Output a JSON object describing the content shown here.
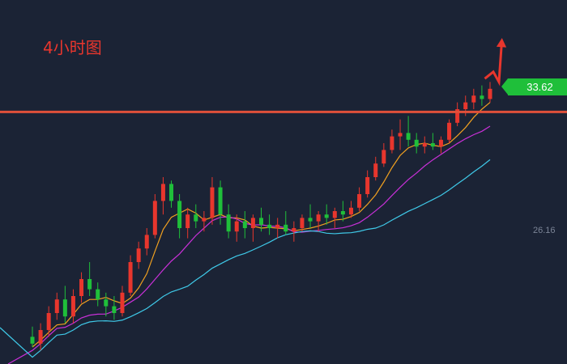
{
  "chart_data": {
    "type": "candlestick",
    "title": "4小时图",
    "timeframe": "4H",
    "price_tag": "33.62",
    "axis_label": "26.16",
    "colors": {
      "background": "#1b2335",
      "up": "#e8362d",
      "down": "#1fbf3a",
      "ma_short": "#f0a020",
      "ma_mid": "#c930d8",
      "ma_long": "#3fc9e8",
      "resistance": "#e0503a",
      "arrow": "#e8362d"
    },
    "resistance_level": 33.62,
    "arrow_path": [
      [
        0.855,
        34.6
      ],
      [
        0.87,
        34.8
      ],
      [
        0.88,
        34.5
      ],
      [
        0.885,
        35.7
      ]
    ],
    "candles": [
      [
        27,
        27.3,
        26.7,
        26.8
      ],
      [
        26.8,
        27.4,
        26.6,
        27.2
      ],
      [
        27.2,
        27.9,
        27.0,
        27.7
      ],
      [
        27.7,
        28.3,
        27.5,
        28.1
      ],
      [
        28.1,
        28.5,
        27.4,
        27.6
      ],
      [
        27.6,
        28.4,
        27.4,
        28.2
      ],
      [
        28.2,
        28.9,
        28.0,
        28.7
      ],
      [
        28.7,
        29.2,
        28.2,
        28.4
      ],
      [
        28.4,
        28.6,
        27.9,
        28.1
      ],
      [
        28.1,
        28.3,
        27.6,
        27.9
      ],
      [
        27.9,
        28.2,
        27.5,
        27.7
      ],
      [
        27.7,
        28.5,
        27.6,
        28.3
      ],
      [
        28.3,
        29.4,
        28.2,
        29.2
      ],
      [
        29.2,
        29.8,
        29.0,
        29.6
      ],
      [
        29.6,
        30.2,
        29.4,
        30.0
      ],
      [
        30.0,
        31.2,
        29.9,
        31.0
      ],
      [
        31.0,
        31.7,
        30.6,
        31.5
      ],
      [
        31.5,
        31.6,
        30.8,
        31.0
      ],
      [
        31.0,
        31.2,
        29.9,
        30.2
      ],
      [
        30.2,
        30.8,
        29.9,
        30.6
      ],
      [
        30.6,
        30.9,
        30.2,
        30.4
      ],
      [
        30.4,
        30.7,
        30.1,
        30.5
      ],
      [
        30.5,
        31.7,
        30.3,
        31.4
      ],
      [
        31.4,
        31.6,
        30.3,
        30.6
      ],
      [
        30.6,
        30.9,
        29.9,
        30.1
      ],
      [
        30.1,
        30.6,
        29.8,
        30.4
      ],
      [
        30.4,
        30.7,
        29.9,
        30.2
      ],
      [
        30.2,
        30.6,
        29.8,
        30.5
      ],
      [
        30.5,
        30.8,
        30.1,
        30.3
      ],
      [
        30.3,
        30.6,
        30.0,
        30.2
      ],
      [
        30.2,
        30.5,
        29.9,
        30.3
      ],
      [
        30.3,
        30.7,
        30.0,
        30.1
      ],
      [
        30.1,
        30.4,
        29.8,
        30.2
      ],
      [
        30.2,
        30.6,
        30.1,
        30.5
      ],
      [
        30.5,
        30.9,
        30.2,
        30.4
      ],
      [
        30.4,
        30.7,
        30.1,
        30.6
      ],
      [
        30.6,
        30.9,
        30.3,
        30.5
      ],
      [
        30.5,
        30.8,
        30.2,
        30.7
      ],
      [
        30.7,
        31.0,
        30.4,
        30.6
      ],
      [
        30.6,
        31.0,
        30.5,
        30.8
      ],
      [
        30.8,
        31.4,
        30.7,
        31.2
      ],
      [
        31.2,
        31.9,
        31.1,
        31.7
      ],
      [
        31.7,
        32.3,
        31.6,
        32.1
      ],
      [
        32.1,
        32.7,
        32.0,
        32.5
      ],
      [
        32.5,
        33.1,
        32.4,
        32.9
      ],
      [
        32.9,
        33.4,
        32.5,
        33.0
      ],
      [
        33.0,
        33.5,
        32.6,
        32.8
      ],
      [
        32.8,
        33.0,
        32.4,
        32.6
      ],
      [
        32.6,
        32.9,
        32.4,
        32.7
      ],
      [
        32.7,
        33.0,
        32.5,
        32.6
      ],
      [
        32.6,
        32.9,
        32.4,
        32.8
      ],
      [
        32.8,
        33.4,
        32.7,
        33.3
      ],
      [
        33.3,
        33.9,
        33.2,
        33.7
      ],
      [
        33.7,
        34.1,
        33.5,
        33.9
      ],
      [
        33.9,
        34.3,
        33.7,
        34.1
      ],
      [
        34.1,
        34.4,
        33.8,
        34.0
      ],
      [
        34.0,
        34.5,
        33.9,
        34.3
      ]
    ]
  }
}
